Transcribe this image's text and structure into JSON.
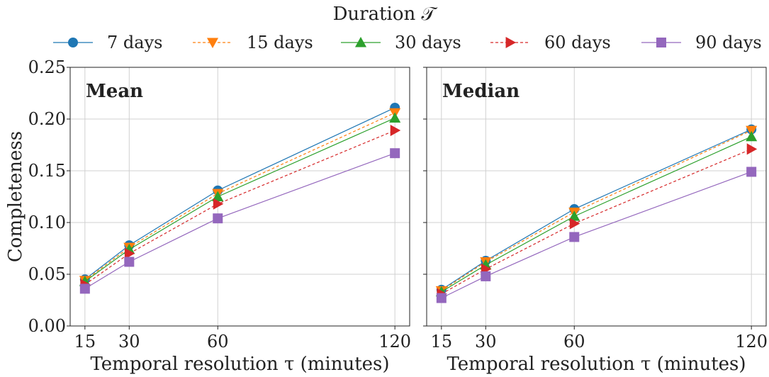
{
  "legend": {
    "title": "Duration 𝒯",
    "items": [
      {
        "label": "7 days",
        "color": "#1f77b4",
        "marker": "circle",
        "dash": ""
      },
      {
        "label": "15 days",
        "color": "#ff7f0e",
        "marker": "triangle-down",
        "dash": "4,3"
      },
      {
        "label": "30 days",
        "color": "#2ca02c",
        "marker": "triangle-up",
        "dash": ""
      },
      {
        "label": "60 days",
        "color": "#d62728",
        "marker": "triangle-right",
        "dash": "4,3"
      },
      {
        "label": "90 days",
        "color": "#9467bd",
        "marker": "square",
        "dash": ""
      }
    ]
  },
  "chart_data": [
    {
      "type": "line",
      "title": "Mean",
      "xlabel": "Temporal resolution τ (minutes)",
      "ylabel": "Completeness",
      "x": [
        15,
        30,
        60,
        120
      ],
      "xticks": [
        "15",
        "30",
        "60",
        "120"
      ],
      "xlim": [
        10,
        125
      ],
      "ylim": [
        0,
        0.25
      ],
      "yticks": [
        "0.00",
        "0.05",
        "0.10",
        "0.15",
        "0.20",
        "0.25"
      ],
      "grid": true,
      "legend_position": "top",
      "series": [
        {
          "name": "7 days",
          "values": [
            0.045,
            0.078,
            0.131,
            0.211
          ]
        },
        {
          "name": "15 days",
          "values": [
            0.044,
            0.076,
            0.128,
            0.206
          ]
        },
        {
          "name": "30 days",
          "values": [
            0.043,
            0.074,
            0.125,
            0.201
          ]
        },
        {
          "name": "60 days",
          "values": [
            0.04,
            0.07,
            0.118,
            0.189
          ]
        },
        {
          "name": "90 days",
          "values": [
            0.036,
            0.062,
            0.104,
            0.167
          ]
        }
      ]
    },
    {
      "type": "line",
      "title": "Median",
      "xlabel": "Temporal resolution τ (minutes)",
      "ylabel": "",
      "x": [
        15,
        30,
        60,
        120
      ],
      "xticks": [
        "15",
        "30",
        "60",
        "120"
      ],
      "xlim": [
        10,
        125
      ],
      "ylim": [
        0,
        0.25
      ],
      "yticks": [
        "0.00",
        "0.05",
        "0.10",
        "0.15",
        "0.20",
        "0.25"
      ],
      "grid": true,
      "legend_position": "top",
      "series": [
        {
          "name": "7 days",
          "values": [
            0.035,
            0.063,
            0.113,
            0.19
          ]
        },
        {
          "name": "15 days",
          "values": [
            0.034,
            0.062,
            0.11,
            0.189
          ]
        },
        {
          "name": "30 days",
          "values": [
            0.033,
            0.059,
            0.106,
            0.183
          ]
        },
        {
          "name": "60 days",
          "values": [
            0.031,
            0.055,
            0.099,
            0.171
          ]
        },
        {
          "name": "90 days",
          "values": [
            0.027,
            0.048,
            0.086,
            0.149
          ]
        }
      ]
    }
  ]
}
